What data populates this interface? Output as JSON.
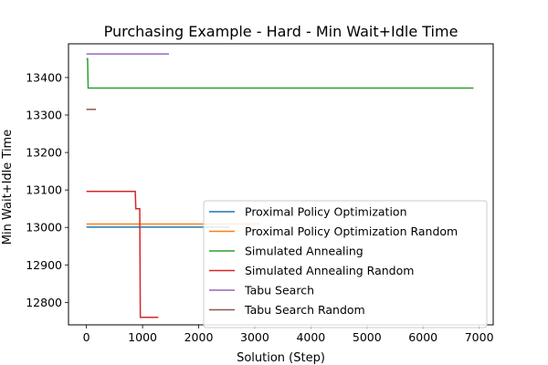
{
  "chart_data": {
    "type": "line",
    "title": "Purchasing Example - Hard - Min Wait+Idle Time",
    "xlabel": "Solution (Step)",
    "ylabel": "Min Wait+Idle Time",
    "xlim": [
      -320,
      7250
    ],
    "ylim": [
      12740,
      13490
    ],
    "xticks": [
      0,
      1000,
      2000,
      3000,
      4000,
      5000,
      6000,
      7000
    ],
    "yticks": [
      12800,
      12900,
      13000,
      13100,
      13200,
      13300,
      13400
    ],
    "grid": false,
    "legend": "lower-right",
    "series": [
      {
        "name": "Proximal Policy Optimization",
        "color": "#1f77b4",
        "points": [
          [
            0,
            13001
          ],
          [
            2550,
            13001
          ]
        ]
      },
      {
        "name": "Proximal Policy Optimization Random",
        "color": "#ff7f0e",
        "points": [
          [
            0,
            13009
          ],
          [
            3100,
            13009
          ]
        ]
      },
      {
        "name": "Simulated Annealing",
        "color": "#2ca02c",
        "points": [
          [
            0,
            13450
          ],
          [
            20,
            13450
          ],
          [
            30,
            13372
          ],
          [
            6900,
            13372
          ]
        ]
      },
      {
        "name": "Simulated Annealing Random",
        "color": "#d62728",
        "points": [
          [
            0,
            13096
          ],
          [
            870,
            13096
          ],
          [
            880,
            13050
          ],
          [
            950,
            13050
          ],
          [
            960,
            12760
          ],
          [
            1280,
            12760
          ]
        ]
      },
      {
        "name": "Tabu Search",
        "color": "#9467bd",
        "points": [
          [
            0,
            13463
          ],
          [
            1470,
            13463
          ]
        ]
      },
      {
        "name": "Tabu Search Random",
        "color": "#8c564b",
        "points": [
          [
            0,
            13315
          ],
          [
            170,
            13315
          ]
        ]
      }
    ]
  }
}
